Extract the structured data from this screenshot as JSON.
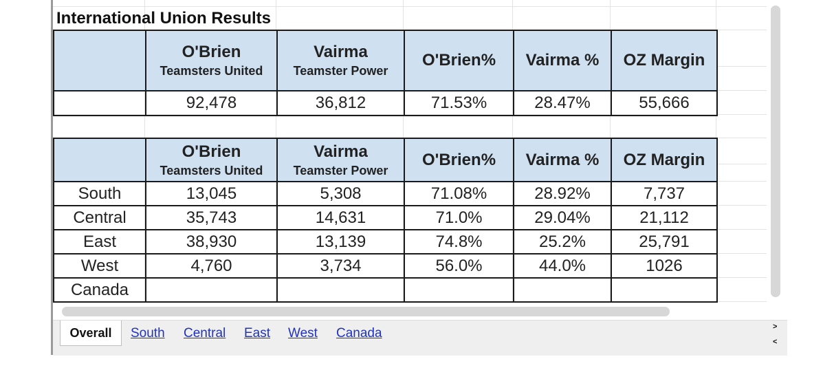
{
  "title": "International Union Results",
  "table_overall": {
    "columns": [
      {
        "candidate": "O'Brien",
        "union": "Teamsters United"
      },
      {
        "candidate": "Vairma",
        "union": "Teamster Power"
      },
      {
        "label": "O'Brien%"
      },
      {
        "label": "Vairma %"
      },
      {
        "label": "OZ Margin"
      }
    ],
    "row": [
      "92,478",
      "36,812",
      "71.53%",
      "28.47%",
      "55,666"
    ]
  },
  "table_regions": {
    "columns": [
      {
        "candidate": "O'Brien",
        "union": "Teamsters United"
      },
      {
        "candidate": "Vairma",
        "union": "Teamster Power"
      },
      {
        "label": "O'Brien%"
      },
      {
        "label": "Vairma %"
      },
      {
        "label": "OZ Margin"
      }
    ],
    "rows": [
      {
        "region": "South",
        "values": [
          "13,045",
          "5,308",
          "71.08%",
          "28.92%",
          "7,737"
        ]
      },
      {
        "region": "Central",
        "values": [
          "35,743",
          "14,631",
          "71.0%",
          "29.04%",
          "21,112"
        ]
      },
      {
        "region": "East",
        "values": [
          "38,930",
          "13,139",
          "74.8%",
          "25.2%",
          "25,791"
        ]
      },
      {
        "region": "West",
        "values": [
          "4,760",
          "3,734",
          "56.0%",
          "44.0%",
          "1026"
        ]
      },
      {
        "region": "Canada",
        "values": [
          "",
          "",
          "",
          "",
          ""
        ]
      }
    ]
  },
  "tabs": {
    "active": "Overall",
    "links": [
      "South",
      "Central",
      "East",
      "West",
      "Canada"
    ]
  },
  "nav": {
    "next": ">",
    "prev": "<"
  }
}
